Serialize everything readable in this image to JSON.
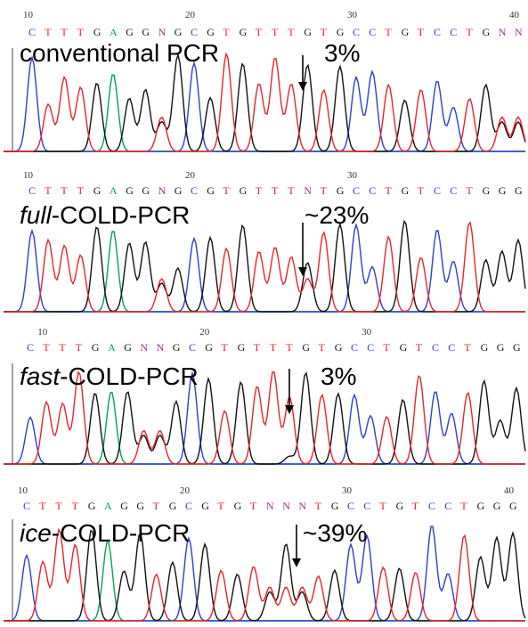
{
  "chart_data": [
    {
      "type": "line",
      "panel": "conventional",
      "title_italic": "",
      "title_rest": "conventional PCR",
      "percent": "3%",
      "positions": [
        "10",
        "20",
        "30",
        "40"
      ],
      "bases": "CTTTGAGGNGCGTGTTTGTGCCTGTCCTGNN"
    },
    {
      "type": "line",
      "panel": "full",
      "title_italic": "full",
      "title_rest": "-COLD-PCR",
      "percent": "~23%",
      "positions": [
        "10",
        "20",
        "30"
      ],
      "bases": "CTTTGAGGNGCGTGTTTNTGCCTGTCCTGGG"
    },
    {
      "type": "line",
      "panel": "fast",
      "title_italic": "fast",
      "title_rest": "-COLD-PCR",
      "percent": "3%",
      "positions": [
        "10",
        "20",
        "30"
      ],
      "bases": "CTTTGAGNNGCGTGTTTGTGCCTGTCCTGGG"
    },
    {
      "type": "line",
      "panel": "ice",
      "title_italic": "ice",
      "title_rest": "-COLD-PCR",
      "percent": "~39%",
      "positions": [
        "10",
        "20",
        "30",
        "40"
      ],
      "bases": "CTTTGAGGTGCGTGTNNNTGCCTGTCCTGGG"
    }
  ],
  "colors": {
    "A": "#00a651",
    "C": "#2b3fcf",
    "G": "#111111",
    "T": "#e8242a",
    "N": "#a03090",
    "axis": "#444444"
  }
}
